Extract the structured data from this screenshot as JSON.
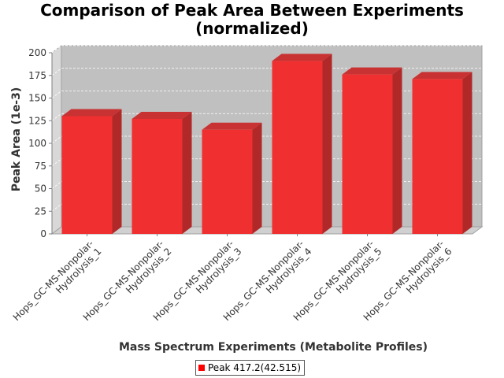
{
  "chart_data": {
    "type": "bar",
    "title": "Comparison of Peak Area Between Experiments\n(normalized)",
    "title_lines": [
      "Comparison of Peak Area Between Experiments",
      "(normalized)"
    ],
    "xlabel": "Mass Spectrum Experiments (Metabolite Profiles)",
    "ylabel": "Peak Area (1e-3)",
    "categories": [
      "Hops_GC-MS-Nonpolar-Hydrolysis_1",
      "Hops_GC-MS-Nonpolar-Hydrolysis_2",
      "Hops_GC-MS-Nonpolar-Hydrolysis_3",
      "Hops_GC-MS-Nonpolar-Hydrolysis_4",
      "Hops_GC-MS-Nonpolar-Hydrolysis_5",
      "Hops_GC-MS-Nonpolar-Hydrolysis_6"
    ],
    "category_lines": [
      [
        "Hops_GC-MS-Nonpolar-",
        "Hydrolysis_1"
      ],
      [
        "Hops_GC-MS-Nonpolar-",
        "Hydrolysis_2"
      ],
      [
        "Hops_GC-MS-Nonpolar-",
        "Hydrolysis_3"
      ],
      [
        "Hops_GC-MS-Nonpolar-",
        "Hydrolysis_4"
      ],
      [
        "Hops_GC-MS-Nonpolar-",
        "Hydrolysis_5"
      ],
      [
        "Hops_GC-MS-Nonpolar-",
        "Hydrolysis_6"
      ]
    ],
    "series": [
      {
        "name": "Peak 417.2(42.515)",
        "values": [
          130,
          127,
          115,
          191,
          176,
          171
        ]
      }
    ],
    "ylim": [
      0,
      200
    ],
    "yticks": [
      "0",
      "25",
      "50",
      "75",
      "100",
      "125",
      "150",
      "175",
      "200"
    ],
    "grid": true,
    "legend_position": "bottom-center",
    "colors": {
      "bar_front": "#f03030",
      "bar_side": "#b02828",
      "bar_top": "#c83232",
      "plot_background": "#c0c0c0",
      "wall": "#d8d8d8",
      "floor": "#d0d0d0",
      "grid": "#ffffff",
      "legend_swatch": "#ff0000"
    }
  }
}
